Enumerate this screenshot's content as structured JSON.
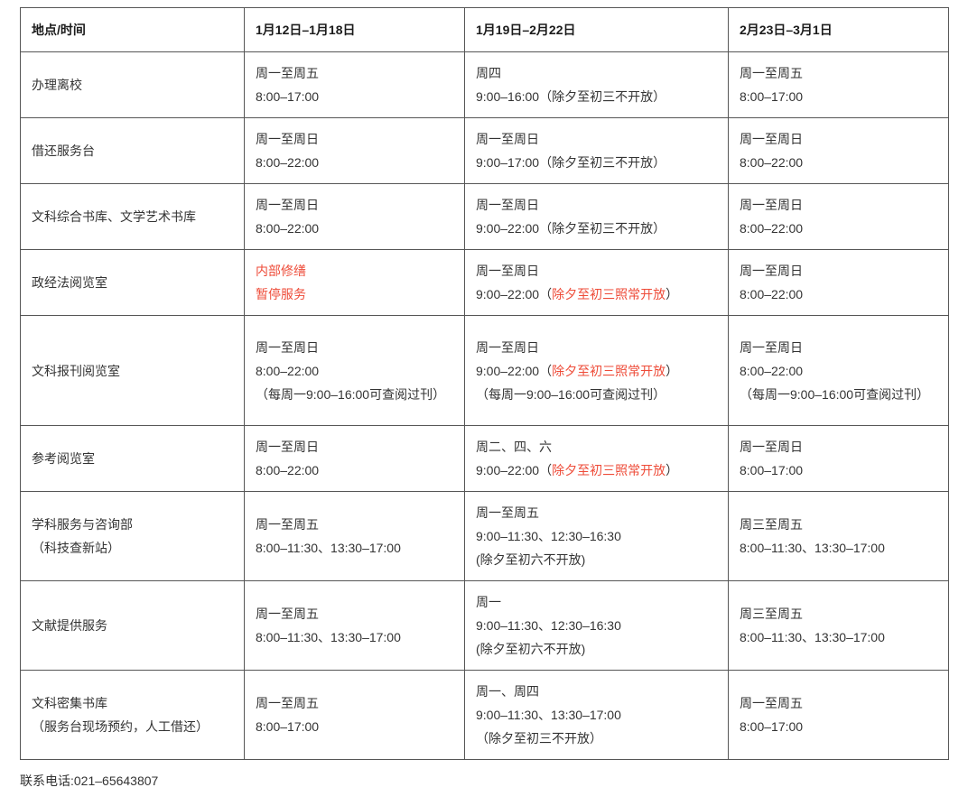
{
  "colors": {
    "red": "#ee4b38",
    "text": "#333333",
    "border": "#565656"
  },
  "table": {
    "columns": [
      "地点/时间",
      "1月12日–1月18日",
      "1月19日–2月22日",
      "2月23日–3月1日"
    ],
    "rows": [
      {
        "location": [
          "办理离校"
        ],
        "cells": [
          [
            [
              {
                "t": "周一至周五"
              }
            ],
            [
              {
                "t": "8:00–17:00"
              }
            ]
          ],
          [
            [
              {
                "t": "周四"
              }
            ],
            [
              {
                "t": "9:00–16:00（除夕至初三不开放）"
              }
            ]
          ],
          [
            [
              {
                "t": "周一至周五"
              }
            ],
            [
              {
                "t": "8:00–17:00"
              }
            ]
          ]
        ]
      },
      {
        "location": [
          "借还服务台"
        ],
        "cells": [
          [
            [
              {
                "t": "周一至周日"
              }
            ],
            [
              {
                "t": "8:00–22:00"
              }
            ]
          ],
          [
            [
              {
                "t": "周一至周日"
              }
            ],
            [
              {
                "t": "9:00–17:00（除夕至初三不开放）"
              }
            ]
          ],
          [
            [
              {
                "t": "周一至周日"
              }
            ],
            [
              {
                "t": "8:00–22:00"
              }
            ]
          ]
        ]
      },
      {
        "location": [
          "文科综合书库、文学艺术书库"
        ],
        "cells": [
          [
            [
              {
                "t": "周一至周日"
              }
            ],
            [
              {
                "t": "8:00–22:00"
              }
            ]
          ],
          [
            [
              {
                "t": "周一至周日"
              }
            ],
            [
              {
                "t": "9:00–22:00（除夕至初三不开放）"
              }
            ]
          ],
          [
            [
              {
                "t": "周一至周日"
              }
            ],
            [
              {
                "t": "8:00–22:00"
              }
            ]
          ]
        ]
      },
      {
        "location": [
          "政经法阅览室"
        ],
        "cells": [
          [
            [
              {
                "t": "内部修缮",
                "red": true
              }
            ],
            [
              {
                "t": "暂停服务",
                "red": true
              }
            ]
          ],
          [
            [
              {
                "t": "周一至周日"
              }
            ],
            [
              {
                "t": "9:00–22:00（"
              },
              {
                "t": "除夕至初三照常开放",
                "red": true
              },
              {
                "t": "）"
              }
            ]
          ],
          [
            [
              {
                "t": "周一至周日"
              }
            ],
            [
              {
                "t": "8:00–22:00"
              }
            ]
          ]
        ]
      },
      {
        "location": [
          "文科报刊阅览室"
        ],
        "cells": [
          [
            [
              {
                "t": "周一至周日"
              }
            ],
            [
              {
                "t": "8:00–22:00"
              }
            ],
            [
              {
                "t": "（每周一9:00–16:00可查阅过刊）"
              }
            ]
          ],
          [
            [
              {
                "t": "周一至周日"
              }
            ],
            [
              {
                "t": "9:00–22:00（"
              },
              {
                "t": "除夕至初三照常开放",
                "red": true
              },
              {
                "t": "）"
              }
            ],
            [
              {
                "t": "（每周一9:00–16:00可查阅过刊）"
              }
            ]
          ],
          [
            [
              {
                "t": "周一至周日"
              }
            ],
            [
              {
                "t": "8:00–22:00"
              }
            ],
            [
              {
                "t": "（每周一9:00–16:00可查阅过刊）"
              }
            ]
          ]
        ]
      },
      {
        "location": [
          "参考阅览室"
        ],
        "cells": [
          [
            [
              {
                "t": "周一至周日"
              }
            ],
            [
              {
                "t": "8:00–22:00"
              }
            ]
          ],
          [
            [
              {
                "t": "周二、四、六"
              }
            ],
            [
              {
                "t": "9:00–22:00（"
              },
              {
                "t": "除夕至初三照常开放",
                "red": true
              },
              {
                "t": "）"
              }
            ]
          ],
          [
            [
              {
                "t": "周一至周日"
              }
            ],
            [
              {
                "t": "8:00–17:00"
              }
            ]
          ]
        ]
      },
      {
        "location": [
          "学科服务与咨询部",
          "（科技查新站）"
        ],
        "cells": [
          [
            [
              {
                "t": "周一至周五"
              }
            ],
            [
              {
                "t": "8:00–11:30、13:30–17:00"
              }
            ]
          ],
          [
            [
              {
                "t": "周一至周五"
              }
            ],
            [
              {
                "t": "9:00–11:30、12:30–16:30"
              }
            ],
            [
              {
                "t": "(除夕至初六不开放)"
              }
            ]
          ],
          [
            [
              {
                "t": "周三至周五"
              }
            ],
            [
              {
                "t": "8:00–11:30、13:30–17:00"
              }
            ]
          ]
        ]
      },
      {
        "location": [
          "文献提供服务"
        ],
        "cells": [
          [
            [
              {
                "t": "周一至周五"
              }
            ],
            [
              {
                "t": "8:00–11:30、13:30–17:00"
              }
            ]
          ],
          [
            [
              {
                "t": "周一"
              }
            ],
            [
              {
                "t": "9:00–11:30、12:30–16:30"
              }
            ],
            [
              {
                "t": "(除夕至初六不开放)"
              }
            ]
          ],
          [
            [
              {
                "t": "周三至周五"
              }
            ],
            [
              {
                "t": "8:00–11:30、13:30–17:00"
              }
            ]
          ]
        ]
      },
      {
        "location": [
          "文科密集书库",
          "（服务台现场预约，人工借还）"
        ],
        "cells": [
          [
            [
              {
                "t": "周一至周五"
              }
            ],
            [
              {
                "t": "8:00–17:00"
              }
            ]
          ],
          [
            [
              {
                "t": "周一、周四"
              }
            ],
            [
              {
                "t": "9:00–11:30、13:30–17:00"
              }
            ],
            [
              {
                "t": "（除夕至初三不开放）"
              }
            ]
          ],
          [
            [
              {
                "t": "周一至周五"
              }
            ],
            [
              {
                "t": "8:00–17:00"
              }
            ]
          ]
        ]
      }
    ]
  },
  "footer": {
    "contact": "联系电话:021–65643807"
  }
}
